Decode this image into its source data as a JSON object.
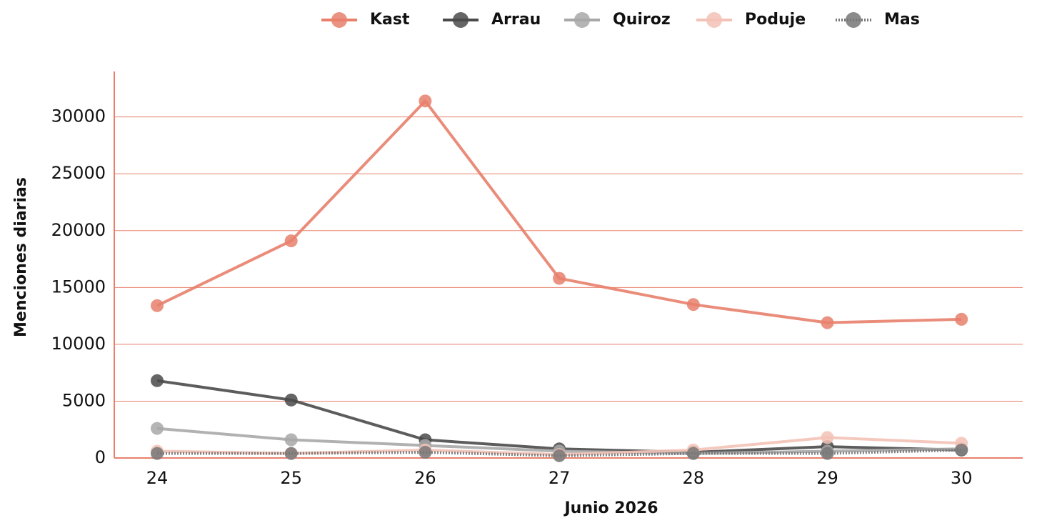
{
  "chart_data": {
    "type": "line",
    "x_label": "Junio 2026",
    "y_label": "Menciones diarias",
    "categories": [
      "24",
      "25",
      "26",
      "27",
      "28",
      "29",
      "30"
    ],
    "series": [
      {
        "name": "Kast",
        "color": "#e8806c",
        "values": [
          13400,
          19100,
          31400,
          15800,
          13500,
          11900,
          12200
        ]
      },
      {
        "name": "Arrau",
        "color": "#4a4a4a",
        "values": [
          6800,
          5100,
          1600,
          800,
          500,
          1000,
          700
        ]
      },
      {
        "name": "Quiroz",
        "color": "#a8a8a8",
        "values": [
          2600,
          1600,
          1100,
          600,
          400,
          600,
          800
        ]
      },
      {
        "name": "Poduje",
        "color": "#f3c2b6",
        "values": [
          600,
          400,
          700,
          300,
          700,
          1800,
          1300
        ]
      },
      {
        "name": "Mas",
        "color": "#777777",
        "values": [
          400,
          400,
          500,
          200,
          400,
          400,
          700
        ]
      }
    ],
    "ylim": [
      0,
      34000
    ],
    "yticks": [
      0,
      5000,
      10000,
      15000,
      20000,
      25000,
      30000
    ],
    "grid": true,
    "grid_color": "#e8806c",
    "legend": "top"
  }
}
